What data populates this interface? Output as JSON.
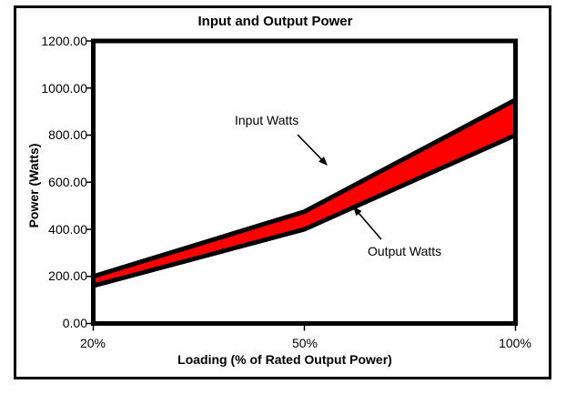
{
  "chart": {
    "title": "Input and Output Power",
    "y_axis": {
      "title": "Power (Watts)",
      "tick_labels": [
        "1200.00",
        "1000.00",
        "800.00",
        "600.00",
        "400.00",
        "200.00",
        "0.00"
      ]
    },
    "x_axis": {
      "title": "Loading (% of Rated Output Power)",
      "tick_labels": [
        "20%",
        "50%",
        "100%"
      ]
    },
    "annotations": {
      "input": "Input Watts",
      "output": "Output Watts"
    }
  },
  "chart_data": {
    "type": "area",
    "categories": [
      "20%",
      "50%",
      "100%"
    ],
    "series": [
      {
        "name": "Input Watts",
        "values": [
          200,
          475,
          950
        ]
      },
      {
        "name": "Output Watts",
        "values": [
          160,
          400,
          800
        ]
      }
    ],
    "title": "Input and Output Power",
    "xlabel": "Loading (% of Rated Output Power)",
    "ylabel": "Power (Watts)",
    "ylim": [
      0,
      1200
    ],
    "y_tick_step": 200,
    "x_axis_type": "category",
    "fill_between_color": "#FF0000",
    "line_color": "#000000",
    "line_width": 5,
    "grid": false,
    "legend": "none"
  }
}
